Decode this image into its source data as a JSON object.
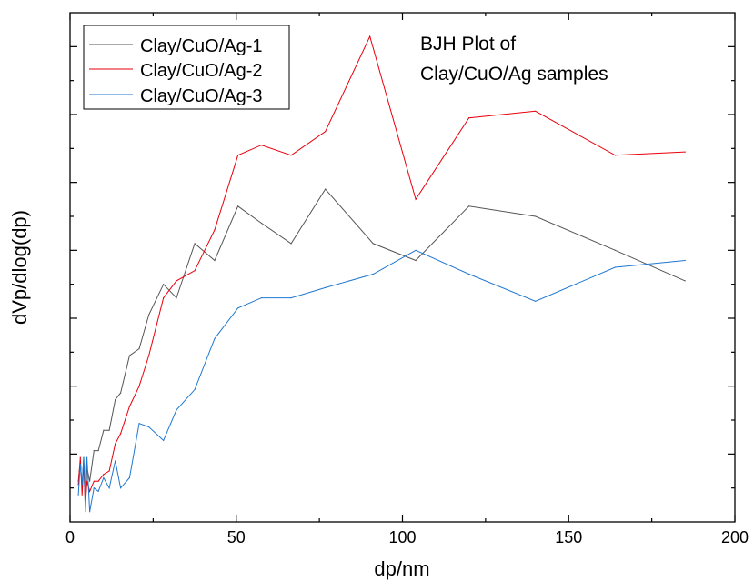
{
  "chart_data": {
    "type": "line",
    "annotation_lines": [
      "BJH Plot of",
      "Clay/CuO/Ag samples"
    ],
    "xlabel": "dp/nm",
    "ylabel": "dVp/dlog(dp)",
    "xlim": [
      0,
      200
    ],
    "ylim": [
      0,
      15
    ],
    "x_ticks": [
      0,
      50,
      100,
      150,
      200
    ],
    "x_tick_labels": [
      "0",
      "50",
      "100",
      "150",
      "200"
    ],
    "y_tick_labels_shown": false,
    "grid": false,
    "legend_position": "top-left",
    "series": [
      {
        "name": "Clay/CuO/Ag-1",
        "color": "#555555",
        "points": [
          [
            2.5,
            1.2
          ],
          [
            3.1,
            1.8
          ],
          [
            3.6,
            1.0
          ],
          [
            4.1,
            1.9
          ],
          [
            4.6,
            0.3
          ],
          [
            5.1,
            1.6
          ],
          [
            5.9,
            1.2
          ],
          [
            7.2,
            2.1
          ],
          [
            8.5,
            2.1
          ],
          [
            10.1,
            2.7
          ],
          [
            11.8,
            2.7
          ],
          [
            13.6,
            3.6
          ],
          [
            15.2,
            3.8
          ],
          [
            17.9,
            4.9
          ],
          [
            20.8,
            5.1
          ],
          [
            23.7,
            6.1
          ],
          [
            28.1,
            7.0
          ],
          [
            32.0,
            6.6
          ],
          [
            37.5,
            8.2
          ],
          [
            43.5,
            7.7
          ],
          [
            50.5,
            9.3
          ],
          [
            57.6,
            8.8
          ],
          [
            66.5,
            8.2
          ],
          [
            76.8,
            9.8
          ],
          [
            91.2,
            8.2
          ],
          [
            104.0,
            7.7
          ],
          [
            120.0,
            9.3
          ],
          [
            140.0,
            9.0
          ],
          [
            164.0,
            8.0
          ],
          [
            185.0,
            7.1
          ]
        ]
      },
      {
        "name": "Clay/CuO/Ag-2",
        "color": "#e8000b",
        "points": [
          [
            2.5,
            1.1
          ],
          [
            3.1,
            1.9
          ],
          [
            3.6,
            0.8
          ],
          [
            4.1,
            1.7
          ],
          [
            4.6,
            0.5
          ],
          [
            5.1,
            1.2
          ],
          [
            5.9,
            0.9
          ],
          [
            7.2,
            1.2
          ],
          [
            8.5,
            1.2
          ],
          [
            10.1,
            1.4
          ],
          [
            11.8,
            1.5
          ],
          [
            13.6,
            2.3
          ],
          [
            15.2,
            2.6
          ],
          [
            17.9,
            3.4
          ],
          [
            20.8,
            4.0
          ],
          [
            23.7,
            4.9
          ],
          [
            28.1,
            6.6
          ],
          [
            32.0,
            7.1
          ],
          [
            37.5,
            7.4
          ],
          [
            43.5,
            8.6
          ],
          [
            50.5,
            10.8
          ],
          [
            57.6,
            11.1
          ],
          [
            66.5,
            10.8
          ],
          [
            76.8,
            11.5
          ],
          [
            90.2,
            14.3
          ],
          [
            104.0,
            9.5
          ],
          [
            120.0,
            11.9
          ],
          [
            140.0,
            12.1
          ],
          [
            164.0,
            10.8
          ],
          [
            185.0,
            10.9
          ]
        ]
      },
      {
        "name": "Clay/CuO/Ag-3",
        "color": "#1f77d0",
        "points": [
          [
            2.5,
            0.8
          ],
          [
            3.1,
            1.7
          ],
          [
            3.6,
            1.1
          ],
          [
            4.1,
            1.9
          ],
          [
            4.6,
            0.6
          ],
          [
            5.1,
            1.9
          ],
          [
            5.9,
            0.3
          ],
          [
            7.2,
            1.0
          ],
          [
            8.5,
            0.9
          ],
          [
            10.1,
            1.3
          ],
          [
            11.8,
            1.0
          ],
          [
            13.6,
            1.8
          ],
          [
            15.2,
            1.0
          ],
          [
            17.9,
            1.3
          ],
          [
            20.8,
            2.9
          ],
          [
            23.7,
            2.8
          ],
          [
            28.1,
            2.4
          ],
          [
            32.0,
            3.3
          ],
          [
            37.5,
            3.9
          ],
          [
            43.5,
            5.4
          ],
          [
            50.5,
            6.3
          ],
          [
            57.6,
            6.6
          ],
          [
            66.5,
            6.6
          ],
          [
            76.8,
            6.9
          ],
          [
            91.2,
            7.3
          ],
          [
            104.0,
            8.0
          ],
          [
            120.0,
            7.3
          ],
          [
            140.0,
            6.5
          ],
          [
            164.0,
            7.5
          ],
          [
            185.0,
            7.7
          ]
        ]
      }
    ]
  }
}
